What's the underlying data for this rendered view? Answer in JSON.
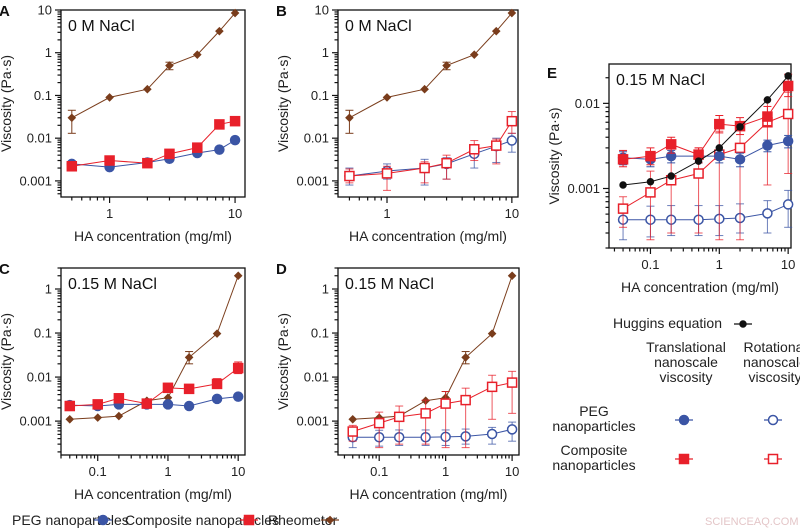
{
  "colors": {
    "peg": "#3b55a5",
    "composite": "#e8202a",
    "rheometer": "#7a3d1c",
    "huggins": "#111111"
  },
  "watermark": "SCIENCEAQ.COM",
  "legend": {
    "items": [
      {
        "label": "PEG nanoparticles",
        "style": "peg_t"
      },
      {
        "label": "Composite nanoparticles",
        "style": "comp_t"
      },
      {
        "label": "Rheometer",
        "style": "rheo"
      }
    ]
  },
  "legend_e": {
    "huggins": "Huggins equation",
    "col1": [
      "Translational",
      "nanoscale",
      "viscosity"
    ],
    "col2": [
      "Rotational",
      "nanoscale",
      "viscosity"
    ],
    "row1": [
      "PEG",
      "nanoparticles"
    ],
    "row2": [
      "Composite",
      "nanoparticles"
    ]
  },
  "chart_data": [
    {
      "panel": "A",
      "type": "line",
      "annotation": "0 M NaCl",
      "xlabel": "HA concentration (mg/ml)",
      "ylabel": "Viscosity (Pa·s)",
      "xscale": "log",
      "yscale": "log",
      "xlim": [
        0.41,
        12
      ],
      "ylim": [
        0.00042,
        10
      ],
      "xticks": [
        "1",
        "10"
      ],
      "yticks": [
        "0.001",
        "0.01",
        "0.1",
        "1",
        "10"
      ],
      "series": [
        {
          "series": "Rheometer",
          "style": "rheo",
          "x": [
            0.5,
            1,
            2,
            3,
            5,
            7.5,
            10
          ],
          "y": [
            0.03,
            0.09,
            0.14,
            0.5,
            0.9,
            3.2,
            8.5
          ],
          "err_lo": [
            0.013,
            null,
            null,
            0.4,
            null,
            null,
            null
          ],
          "err_hi": [
            0.045,
            null,
            null,
            0.6,
            null,
            null,
            null
          ]
        },
        {
          "series": "PEG nanoparticles",
          "style": "peg_t",
          "x": [
            0.5,
            1,
            2,
            3,
            5,
            7.5,
            10
          ],
          "y": [
            0.0025,
            0.0021,
            0.0027,
            0.0033,
            0.0045,
            0.0054,
            0.009
          ]
        },
        {
          "series": "Composite nanoparticles",
          "style": "comp_t",
          "x": [
            0.5,
            1,
            2,
            3,
            5,
            7.5,
            10
          ],
          "y": [
            0.0022,
            0.003,
            0.0026,
            0.0043,
            0.006,
            0.021,
            0.025
          ]
        }
      ]
    },
    {
      "panel": "B",
      "type": "line",
      "annotation": "0 M NaCl",
      "xlabel": "HA concentration (mg/ml)",
      "ylabel": "Viscosity (Pa·s)",
      "xscale": "log",
      "yscale": "log",
      "xlim": [
        0.405,
        11.2
      ],
      "ylim": [
        0.00042,
        10
      ],
      "xticks": [
        "1",
        "10"
      ],
      "yticks": [
        "0.001",
        "0.01",
        "0.1",
        "1",
        "10"
      ],
      "series": [
        {
          "series": "Rheometer",
          "style": "rheo",
          "x": [
            0.5,
            1,
            2,
            3,
            5,
            7.5,
            10
          ],
          "y": [
            0.03,
            0.09,
            0.14,
            0.5,
            0.9,
            3.2,
            8.5
          ],
          "err_lo": [
            0.013,
            null,
            null,
            0.4,
            null,
            null,
            null
          ],
          "err_hi": [
            0.045,
            null,
            null,
            0.6,
            null,
            null,
            null
          ]
        },
        {
          "series": "PEG nanoparticles",
          "style": "peg_r",
          "x": [
            0.5,
            1,
            2,
            3,
            5,
            7.5,
            10
          ],
          "y": [
            0.0013,
            0.0017,
            0.002,
            0.0025,
            0.0043,
            0.0065,
            0.0088
          ],
          "err_lo": [
            0.0008,
            0.0011,
            0.0008,
            0.0011,
            0.002,
            0.0027,
            0.0047
          ],
          "err_hi": [
            0.002,
            0.0025,
            0.0032,
            0.0035,
            0.0065,
            0.01,
            0.013
          ]
        },
        {
          "series": "Composite nanoparticles",
          "style": "comp_r",
          "x": [
            0.5,
            1,
            2,
            3,
            5,
            7.5,
            10
          ],
          "y": [
            0.0013,
            0.0015,
            0.002,
            0.0026,
            0.0055,
            0.0067,
            0.025
          ],
          "err_lo": [
            0.0009,
            0.0006,
            0.0009,
            0.0011,
            0.003,
            0.0025,
            0.013
          ],
          "err_hi": [
            0.0019,
            0.0022,
            0.0028,
            0.004,
            0.0088,
            0.0095,
            0.042
          ]
        }
      ]
    },
    {
      "panel": "C",
      "type": "line",
      "annotation": "0.15 M NaCl",
      "xlabel": "HA concentration (mg/ml)",
      "ylabel": "Viscosity (Pa·s)",
      "xscale": "log",
      "yscale": "log",
      "xlim": [
        0.03,
        12.5
      ],
      "ylim": [
        0.00017,
        3
      ],
      "xticks": [
        "0.1",
        "1",
        "10"
      ],
      "yticks": [
        "0.001",
        "0.01",
        "0.1",
        "1"
      ],
      "series": [
        {
          "series": "Rheometer",
          "style": "rheo",
          "x": [
            0.04,
            0.1,
            0.2,
            0.5,
            1,
            2,
            5,
            10
          ],
          "y": [
            0.0011,
            0.0012,
            0.0013,
            0.0029,
            0.0034,
            0.028,
            0.097,
            2.0
          ],
          "err_lo": [
            null,
            null,
            null,
            null,
            null,
            0.02,
            null,
            null
          ],
          "err_hi": [
            null,
            null,
            null,
            null,
            null,
            0.038,
            null,
            null
          ]
        },
        {
          "series": "PEG nanoparticles",
          "style": "peg_t",
          "x": [
            0.04,
            0.1,
            0.2,
            0.5,
            1,
            2,
            5,
            10
          ],
          "y": [
            0.0023,
            0.0022,
            0.0024,
            0.0024,
            0.0024,
            0.0022,
            0.0032,
            0.0036
          ]
        },
        {
          "series": "Composite nanoparticles",
          "style": "comp_t",
          "x": [
            0.04,
            0.1,
            0.2,
            0.5,
            1,
            2,
            5,
            10
          ],
          "y": [
            0.0022,
            0.0024,
            0.0033,
            0.0025,
            0.0057,
            0.0054,
            0.007,
            0.016
          ],
          "err_lo": [
            0.0018,
            0.0019,
            0.0026,
            0.002,
            0.0045,
            0.0043,
            0.0055,
            0.012
          ],
          "err_hi": [
            0.0028,
            0.003,
            0.004,
            0.003,
            0.0072,
            0.0068,
            0.0092,
            0.022
          ]
        }
      ]
    },
    {
      "panel": "D",
      "type": "line",
      "annotation": "0.15 M NaCl",
      "xlabel": "HA concentration (mg/ml)",
      "ylabel": "Viscosity (Pa·s)",
      "xscale": "log",
      "yscale": "log",
      "xlim": [
        0.024,
        12.7
      ],
      "ylim": [
        0.00017,
        3
      ],
      "xticks": [
        "0.1",
        "1",
        "10"
      ],
      "yticks": [
        "0.001",
        "0.01",
        "0.1",
        "1"
      ],
      "series": [
        {
          "series": "Rheometer",
          "style": "rheo",
          "x": [
            0.04,
            0.1,
            0.2,
            0.5,
            1,
            2,
            5,
            10
          ],
          "y": [
            0.0011,
            0.0012,
            0.0013,
            0.0029,
            0.0034,
            0.028,
            0.097,
            2.0
          ],
          "err_lo": [
            null,
            null,
            null,
            null,
            0.0025,
            0.02,
            null,
            null
          ],
          "err_hi": [
            null,
            null,
            null,
            null,
            0.0047,
            0.038,
            null,
            null
          ]
        },
        {
          "series": "PEG nanoparticles",
          "style": "peg_r",
          "x": [
            0.04,
            0.1,
            0.2,
            0.5,
            1,
            2,
            5,
            10
          ],
          "y": [
            0.00043,
            0.00043,
            0.00043,
            0.00043,
            0.00044,
            0.00045,
            0.00051,
            0.00065
          ],
          "err_lo": [
            0.00025,
            0.00027,
            0.00028,
            0.00028,
            0.00028,
            0.0003,
            0.0003,
            0.00035
          ],
          "err_hi": [
            0.0006,
            0.00062,
            0.00063,
            0.00063,
            0.00063,
            0.00066,
            0.00072,
            0.00095
          ]
        },
        {
          "series": "Composite nanoparticles",
          "style": "comp_r",
          "x": [
            0.04,
            0.1,
            0.2,
            0.5,
            1,
            2,
            5,
            10
          ],
          "y": [
            0.00058,
            0.0009,
            0.00125,
            0.0015,
            0.0025,
            0.003,
            0.006,
            0.0075
          ],
          "err_lo": [
            0.00035,
            0.00025,
            0.0003,
            0.0003,
            0.00025,
            0.00025,
            0.0011,
            0.0015
          ],
          "err_hi": [
            0.0008,
            0.0016,
            0.0022,
            0.003,
            0.0047,
            0.0056,
            0.011,
            0.0135
          ]
        }
      ]
    },
    {
      "panel": "E",
      "type": "line",
      "annotation": "0.15 M NaCl",
      "xlabel": "HA concentration (mg/ml)",
      "ylabel": "Viscosity (Pa·s)",
      "xscale": "log",
      "yscale": "log",
      "xlim": [
        0.025,
        11
      ],
      "ylim": [
        0.0002,
        0.029
      ],
      "xticks": [
        "0.1",
        "1",
        "10"
      ],
      "yticks": [
        "0.001",
        "0.01"
      ],
      "series": [
        {
          "series": "PEG nanoparticles",
          "style": "peg_r",
          "x": [
            0.04,
            0.1,
            0.2,
            0.5,
            1,
            2,
            5,
            10
          ],
          "y": [
            0.00043,
            0.00043,
            0.00043,
            0.00043,
            0.00044,
            0.00045,
            0.00051,
            0.00065
          ],
          "err_lo": [
            0.00025,
            0.00027,
            0.00028,
            0.00028,
            0.00028,
            0.0003,
            0.0003,
            0.00035
          ],
          "err_hi": [
            0.0006,
            0.00062,
            0.00063,
            0.00063,
            0.00063,
            0.00066,
            0.00072,
            0.00095
          ]
        },
        {
          "series": "Composite nanoparticles",
          "style": "comp_r",
          "x": [
            0.04,
            0.1,
            0.2,
            0.5,
            1,
            2,
            5,
            10
          ],
          "y": [
            0.00058,
            0.0009,
            0.00125,
            0.0015,
            0.0025,
            0.003,
            0.006,
            0.0075
          ],
          "err_lo": [
            0.00035,
            0.00025,
            0.0003,
            0.0003,
            0.00025,
            0.00025,
            0.0011,
            0.0015
          ],
          "err_hi": [
            0.0008,
            0.0016,
            0.0022,
            0.003,
            0.0047,
            0.0056,
            0.011,
            0.0135
          ]
        },
        {
          "series": "PEG nanoparticles",
          "style": "peg_t",
          "x": [
            0.04,
            0.1,
            0.2,
            0.5,
            1,
            2,
            5,
            10
          ],
          "y": [
            0.0023,
            0.0022,
            0.0024,
            0.0024,
            0.0024,
            0.0022,
            0.0032,
            0.0036
          ],
          "err_lo": [
            0.0019,
            0.0018,
            0.002,
            0.002,
            0.002,
            0.0018,
            0.0027,
            0.003
          ],
          "err_hi": [
            0.0027,
            0.0026,
            0.0028,
            0.0028,
            0.0028,
            0.0026,
            0.0037,
            0.0042
          ]
        },
        {
          "series": "Composite nanoparticles",
          "style": "comp_t",
          "x": [
            0.04,
            0.1,
            0.2,
            0.5,
            1,
            2,
            5,
            10
          ],
          "y": [
            0.0022,
            0.0024,
            0.0033,
            0.0025,
            0.0057,
            0.0054,
            0.007,
            0.016
          ],
          "err_lo": [
            0.0018,
            0.0019,
            0.0026,
            0.002,
            0.0045,
            0.0043,
            0.0055,
            0.012
          ],
          "err_hi": [
            0.0028,
            0.003,
            0.004,
            0.003,
            0.0072,
            0.0068,
            0.0092,
            0.022
          ]
        },
        {
          "series": "Huggins equation",
          "style": "huggins",
          "x": [
            0.04,
            0.1,
            0.2,
            0.5,
            1,
            2,
            5,
            10
          ],
          "y": [
            0.0011,
            0.0012,
            0.0014,
            0.0021,
            0.003,
            0.0053,
            0.011,
            0.021
          ]
        }
      ]
    }
  ]
}
